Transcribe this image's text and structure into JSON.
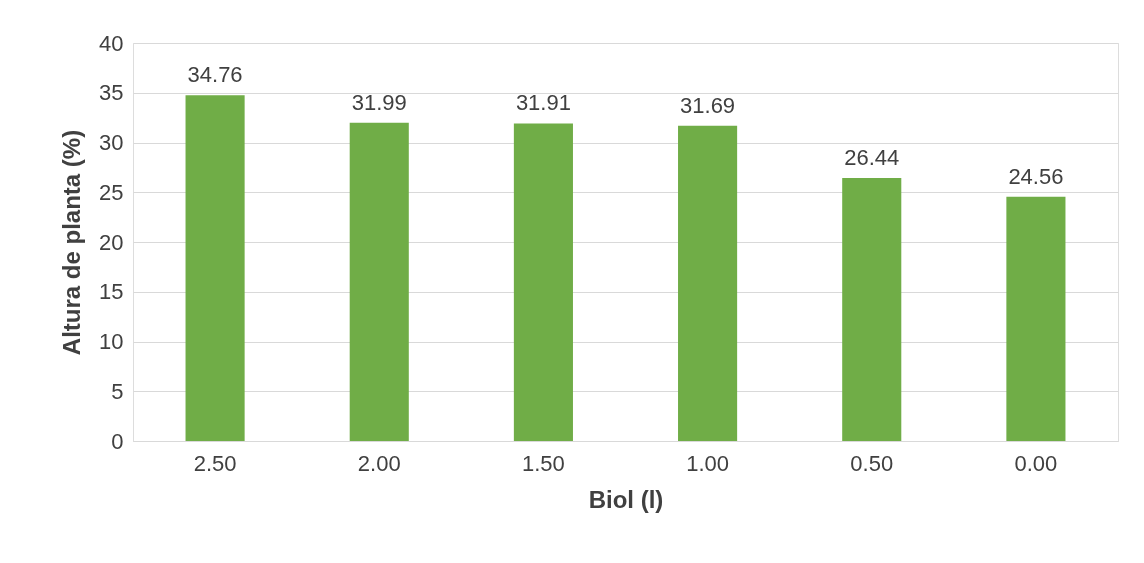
{
  "chart_data": {
    "type": "bar",
    "xlabel": "Biol (l)",
    "ylabel": "Altura de planta (%)",
    "categories": [
      "2.50",
      "2.00",
      "1.50",
      "1.00",
      "0.50",
      "0.00"
    ],
    "values": [
      34.76,
      31.99,
      31.91,
      31.69,
      26.44,
      24.56
    ],
    "color": "#70ad47",
    "ylim": [
      0,
      40
    ],
    "yticks": [
      0,
      5,
      10,
      15,
      20,
      25,
      30,
      35,
      40
    ],
    "grid": "y",
    "data_labels": true
  }
}
